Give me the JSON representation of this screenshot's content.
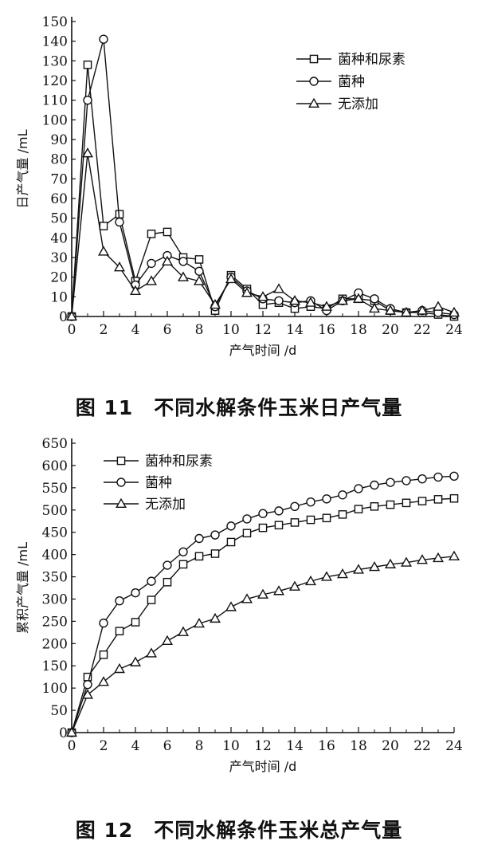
{
  "figures": [
    {
      "caption": "图 11　不同水解条件玉米日产气量",
      "chart_data": {
        "type": "line",
        "xlabel": "产气时间 /d",
        "ylabel": "日产气量 /mL",
        "xlim": [
          0,
          24
        ],
        "ylim": [
          0,
          150
        ],
        "xticks": [
          0,
          2,
          4,
          6,
          8,
          10,
          12,
          14,
          16,
          18,
          20,
          22,
          24
        ],
        "yticks": [
          0,
          10,
          20,
          30,
          40,
          50,
          60,
          70,
          80,
          90,
          100,
          110,
          120,
          130,
          140,
          150
        ],
        "legend_position": "top-right",
        "grid": false,
        "x": [
          0,
          1,
          2,
          3,
          4,
          5,
          6,
          7,
          8,
          9,
          10,
          11,
          12,
          13,
          14,
          15,
          16,
          17,
          18,
          19,
          20,
          21,
          22,
          23,
          24
        ],
        "series": [
          {
            "name": "菌种和尿素",
            "marker": "square",
            "values": [
              0,
              128,
              46,
              52,
              18,
              42,
              43,
              30,
              29,
              3,
              21,
              14,
              6,
              7,
              4,
              5,
              4,
              9,
              9,
              8,
              3,
              2,
              2,
              1,
              0
            ]
          },
          {
            "name": "菌种",
            "marker": "circle",
            "values": [
              0,
              110,
              141,
              48,
              16,
              27,
              31,
              28,
              23,
              5,
              20,
              13,
              9,
              8,
              7,
              8,
              3,
              8,
              12,
              9,
              4,
              2,
              3,
              2,
              1
            ]
          },
          {
            "name": "无添加",
            "marker": "triangle",
            "values": [
              0,
              83,
              33,
              25,
              13,
              18,
              28,
              20,
              18,
              6,
              19,
              12,
              10,
              14,
              8,
              7,
              5,
              8,
              9,
              4,
              3,
              2,
              3,
              5,
              2
            ]
          }
        ]
      }
    },
    {
      "caption": "图 12　不同水解条件玉米总产气量",
      "chart_data": {
        "type": "line",
        "xlabel": "产气时间 /d",
        "ylabel": "累积产气量 /mL",
        "xlim": [
          0,
          24
        ],
        "ylim": [
          0,
          650
        ],
        "xticks": [
          0,
          2,
          4,
          6,
          8,
          10,
          12,
          14,
          16,
          18,
          20,
          22,
          24
        ],
        "yticks": [
          0,
          50,
          100,
          150,
          200,
          250,
          300,
          350,
          400,
          450,
          500,
          550,
          600,
          650
        ],
        "legend_position": "top-left",
        "grid": false,
        "x": [
          0,
          1,
          2,
          3,
          4,
          5,
          6,
          7,
          8,
          9,
          10,
          11,
          12,
          13,
          14,
          15,
          16,
          17,
          18,
          19,
          20,
          21,
          22,
          23,
          24
        ],
        "series": [
          {
            "name": "菌种和尿素",
            "marker": "square",
            "values": [
              0,
              125,
              175,
              228,
              248,
              298,
              338,
              378,
              396,
              402,
              428,
              448,
              460,
              466,
              472,
              478,
              482,
              490,
              502,
              508,
              512,
              516,
              520,
              524,
              526
            ]
          },
          {
            "name": "菌种",
            "marker": "circle",
            "values": [
              0,
              108,
              246,
              296,
              314,
              340,
              376,
              406,
              436,
              444,
              464,
              480,
              492,
              498,
              508,
              518,
              525,
              534,
              548,
              556,
              562,
              566,
              570,
              574,
              576
            ]
          },
          {
            "name": "无添加",
            "marker": "triangle",
            "values": [
              0,
              85,
              114,
              143,
              158,
              178,
              206,
              226,
              245,
              256,
              282,
              300,
              310,
              318,
              328,
              340,
              350,
              356,
              366,
              372,
              378,
              382,
              388,
              392,
              396
            ]
          }
        ]
      }
    }
  ]
}
